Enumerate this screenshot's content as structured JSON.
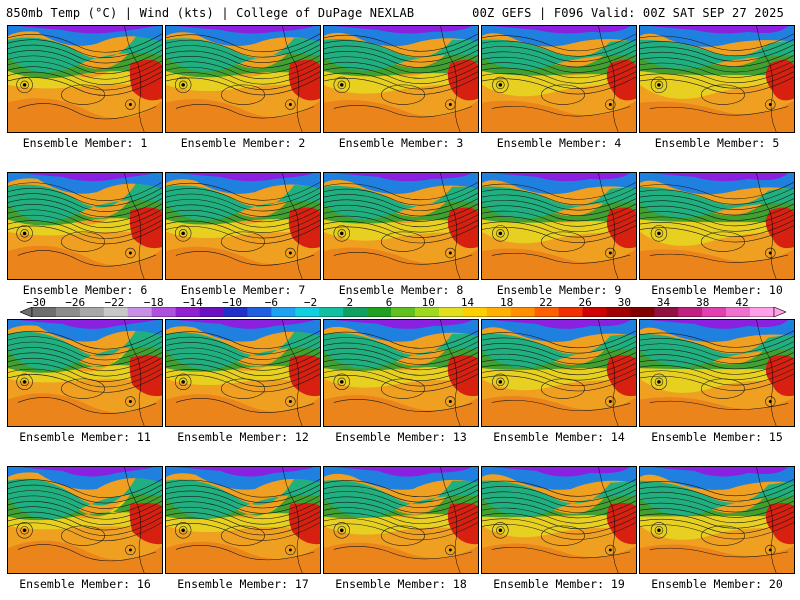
{
  "header": {
    "left_title": "850mb Temp (°C) | Wind (kts) | College of DuPage NEXLAB",
    "right_title": "00Z GEFS | F096 Valid: 00Z SAT SEP 27 2025"
  },
  "panels": [
    {
      "label": "Ensemble Member: 1"
    },
    {
      "label": "Ensemble Member: 2"
    },
    {
      "label": "Ensemble Member: 3"
    },
    {
      "label": "Ensemble Member: 4"
    },
    {
      "label": "Ensemble Member: 5"
    },
    {
      "label": "Ensemble Member: 6"
    },
    {
      "label": "Ensemble Member: 7"
    },
    {
      "label": "Ensemble Member: 8"
    },
    {
      "label": "Ensemble Member: 9"
    },
    {
      "label": "Ensemble Member: 10"
    },
    {
      "label": "Ensemble Member: 11"
    },
    {
      "label": "Ensemble Member: 12"
    },
    {
      "label": "Ensemble Member: 13"
    },
    {
      "label": "Ensemble Member: 14"
    },
    {
      "label": "Ensemble Member: 15"
    },
    {
      "label": "Ensemble Member: 16"
    },
    {
      "label": "Ensemble Member: 17"
    },
    {
      "label": "Ensemble Member: 18"
    },
    {
      "label": "Ensemble Member: 19"
    },
    {
      "label": "Ensemble Member: 20"
    }
  ],
  "colorbar": {
    "tick_labels": [
      "−30",
      "−26",
      "−22",
      "−18",
      "−14",
      "−10",
      "−6",
      "−2",
      "2",
      "6",
      "10",
      "14",
      "18",
      "22",
      "26",
      "30",
      "34",
      "38",
      "42"
    ],
    "colors": [
      "#6e6e6e",
      "#8c8c8c",
      "#a8a8a8",
      "#c8c8c8",
      "#c890e6",
      "#b050e0",
      "#9020d0",
      "#6a10c0",
      "#2030c8",
      "#2060e0",
      "#20a0f0",
      "#10d0e0",
      "#10c0a0",
      "#10a060",
      "#20a020",
      "#60c020",
      "#a0d820",
      "#e0e020",
      "#ffd000",
      "#ffb000",
      "#ff9000",
      "#ff6000",
      "#f03000",
      "#d00000",
      "#a00000",
      "#800000",
      "#901040",
      "#c02080",
      "#e040b0",
      "#f070d0",
      "#ffa0e8"
    ]
  },
  "map_colors": {
    "cold": "#8a20e0",
    "cool": "#2080e0",
    "mild": "#20b080",
    "green": "#40a030",
    "yellow": "#e8d020",
    "orange": "#f0a020",
    "warm": "#e87018",
    "hot": "#d82010"
  }
}
